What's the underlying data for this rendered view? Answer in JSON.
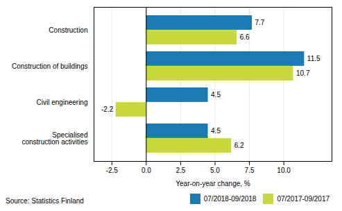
{
  "chart_data": {
    "type": "bar",
    "orientation": "horizontal",
    "categories": [
      "Specialised\nconstruction activities",
      "Civil engineering",
      "Construction of buildings",
      "Construction"
    ],
    "series": [
      {
        "name": "07/2018-09/2018",
        "color": "#1a7ab4",
        "values": [
          4.5,
          4.5,
          11.5,
          7.7
        ]
      },
      {
        "name": "07/2017-09/2017",
        "color": "#c8d93e",
        "values": [
          6.2,
          -2.2,
          10.7,
          6.6
        ]
      }
    ],
    "xlabel": "Year-on-year change, %",
    "xlim": [
      -3.8,
      13.5
    ],
    "xticks": [
      -2.5,
      {
        "value": 0,
        "label": "0.0"
      },
      2.5,
      {
        "value": 5,
        "label": "5.0"
      },
      7.5,
      {
        "value": 10,
        "label": "10.0"
      }
    ],
    "grid": true,
    "legend": "lower right",
    "data_labels": true,
    "annotations": [
      "Source: Statistics Finland"
    ]
  }
}
